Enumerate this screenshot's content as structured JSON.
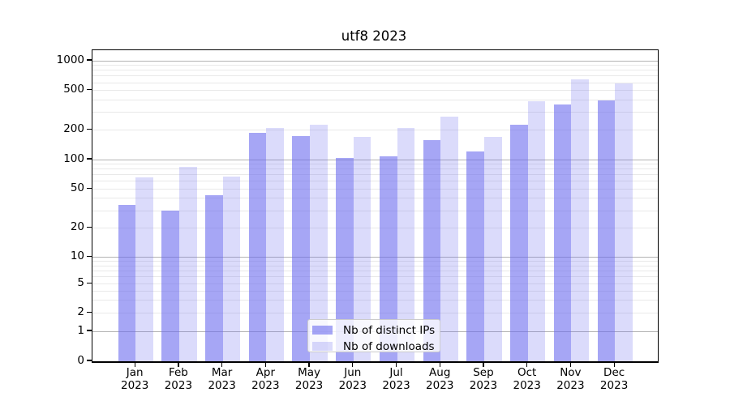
{
  "title": "utf8 2023",
  "chart_data": {
    "type": "bar",
    "title": "utf8 2023",
    "xlabel": "",
    "ylabel": "",
    "categories": [
      "Jan 2023",
      "Feb 2023",
      "Mar 2023",
      "Apr 2023",
      "May 2023",
      "Jun 2023",
      "Jul 2023",
      "Aug 2023",
      "Sep 2023",
      "Oct 2023",
      "Nov 2023",
      "Dec 2023"
    ],
    "series": [
      {
        "name": "Nb of distinct IPs",
        "color": "rgba(104,104,238,0.59)",
        "values": [
          34,
          30,
          43,
          185,
          172,
          103,
          107,
          156,
          120,
          226,
          358,
          398
        ]
      },
      {
        "name": "Nb of downloads",
        "color": "rgba(104,104,238,0.235)",
        "values": [
          66,
          84,
          67,
          208,
          226,
          170,
          207,
          273,
          170,
          386,
          644,
          592
        ]
      }
    ],
    "yscale": "symlog",
    "yticks": [
      1000,
      500,
      200,
      100,
      50,
      20,
      10,
      5,
      2,
      1,
      0
    ],
    "minor_yticks": [
      900,
      800,
      700,
      600,
      500,
      400,
      300,
      200,
      90,
      80,
      70,
      60,
      50,
      40,
      30,
      20,
      9,
      8,
      7,
      6,
      5,
      4,
      3,
      2
    ],
    "major_grid_values": [
      1000,
      100,
      10,
      1
    ],
    "ylim": [
      0,
      1318
    ],
    "grid": true,
    "legend_position": "lower center",
    "colors": {
      "major_grid": "#b3b3b3",
      "minor_grid": "#e9e9e9",
      "axis": "#000000",
      "legend_border": "#cccccc"
    }
  }
}
